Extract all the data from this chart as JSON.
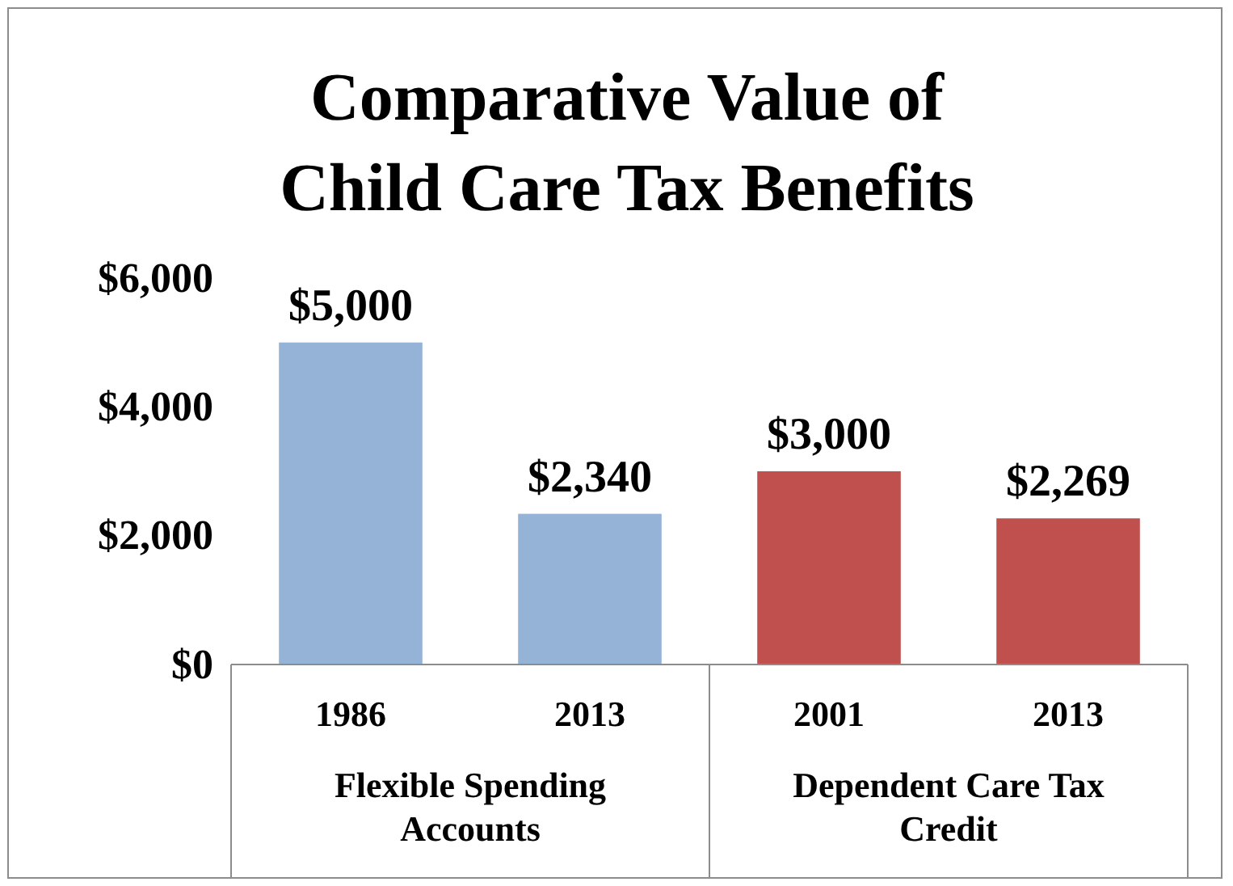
{
  "chart_data": {
    "type": "bar",
    "title": "Comparative Value of Child Care Tax Benefits",
    "categories": [
      "1986",
      "2013",
      "2001",
      "2013"
    ],
    "series": [
      {
        "name": "Flexible Spending Accounts",
        "color": "#95b3d7",
        "values": [
          5000,
          2340,
          null,
          null
        ],
        "value_labels": [
          "$5,000",
          "$2,340",
          null,
          null
        ]
      },
      {
        "name": "Dependent Care Tax Credit",
        "color": "#c0504d",
        "values": [
          null,
          null,
          3000,
          2269
        ],
        "value_labels": [
          null,
          null,
          "$3,000",
          "$2,269"
        ]
      }
    ],
    "ylim": [
      0,
      6000
    ],
    "yticks": [
      {
        "value": 0,
        "label": "$0"
      },
      {
        "value": 2000,
        "label": "$2,000"
      },
      {
        "value": 4000,
        "label": "$4,000"
      },
      {
        "value": 6000,
        "label": "$6,000"
      }
    ],
    "grid": false
  }
}
